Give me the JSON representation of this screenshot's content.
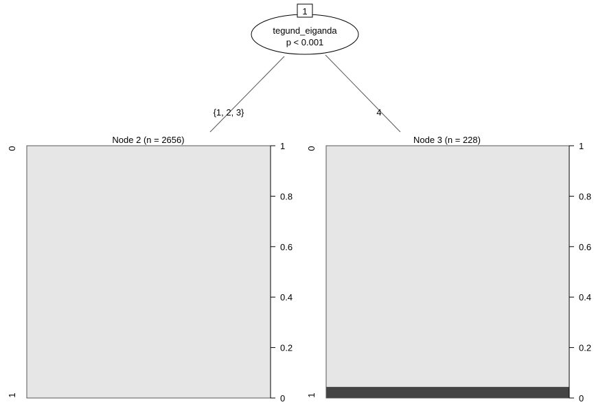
{
  "root": {
    "id": "1",
    "variable": "tegund_eiganda",
    "pvalue": "p < 0.001"
  },
  "edges": {
    "left_label": "{1, 2, 3}",
    "right_label": "4"
  },
  "left_node": {
    "title": "Node 2 (n = 2656)",
    "top_category": "0",
    "bottom_category": "1",
    "fraction_category_1": 0.0
  },
  "right_node": {
    "title": "Node 3 (n = 228)",
    "top_category": "0",
    "bottom_category": "1",
    "fraction_category_1": 0.044
  },
  "right_axis": {
    "ticks": [
      "1",
      "0.8",
      "0.6",
      "0.4",
      "0.2",
      "0"
    ]
  },
  "colors": {
    "category_0": "#e6e6e6",
    "category_1": "#444444",
    "edge": "#555555"
  }
}
